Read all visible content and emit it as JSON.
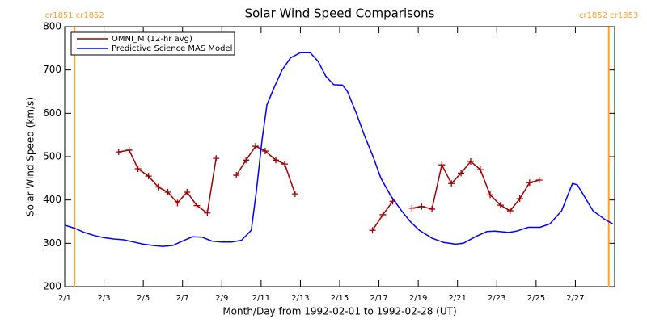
{
  "chart_data": {
    "type": "line",
    "title": "Solar Wind Speed Comparisons",
    "xlabel": "Month/Day from 1992-02-01 to 1992-02-28 (UT)",
    "ylabel": "Solar Wind Speed (km/s)",
    "xlim": [
      0,
      28
    ],
    "xticks": [
      {
        "value": 0,
        "label": "2/1"
      },
      {
        "value": 2,
        "label": "2/3"
      },
      {
        "value": 4,
        "label": "2/5"
      },
      {
        "value": 6,
        "label": "2/7"
      },
      {
        "value": 8,
        "label": "2/9"
      },
      {
        "value": 10,
        "label": "2/11"
      },
      {
        "value": 12,
        "label": "2/13"
      },
      {
        "value": 14,
        "label": "2/15"
      },
      {
        "value": 16,
        "label": "2/17"
      },
      {
        "value": 18,
        "label": "2/19"
      },
      {
        "value": 20,
        "label": "2/21"
      },
      {
        "value": 22,
        "label": "2/23"
      },
      {
        "value": 24,
        "label": "2/25"
      },
      {
        "value": 26,
        "label": "2/27"
      }
    ],
    "ylim": [
      200,
      800
    ],
    "yticks": [
      200,
      300,
      400,
      500,
      600,
      700,
      800
    ],
    "legend": "top-left",
    "annotations": [
      {
        "x": 0.5,
        "text": "cr1851 cr1852",
        "color": "#ff9f2f"
      },
      {
        "x": 27.7,
        "text": "cr1852 cr1853",
        "color": "#ff9f2f"
      }
    ],
    "series": [
      {
        "name": "OMNI_M (12-hr avg)",
        "color": "#a00000",
        "marker": "+",
        "x": [
          2.75,
          3.28,
          3.73,
          4.27,
          4.76,
          5.25,
          5.74,
          6.23,
          6.73,
          7.26,
          7.71,
          null,
          8.74,
          9.23,
          9.72,
          10.21,
          10.75,
          11.2,
          11.73,
          null,
          15.67,
          16.2,
          16.7,
          null,
          17.68,
          18.17,
          18.7,
          19.2,
          19.69,
          20.18,
          20.67,
          21.16,
          21.66,
          22.19,
          22.68,
          23.17,
          23.67,
          24.16
        ],
        "values": [
          511,
          515,
          472,
          455,
          430,
          418,
          393,
          418,
          387,
          370,
          496,
          null,
          457,
          492,
          524,
          513,
          492,
          483,
          414,
          null,
          330,
          366,
          397,
          null,
          381,
          385,
          379,
          481,
          438,
          462,
          489,
          470,
          412,
          388,
          375,
          403,
          440,
          446
        ]
      },
      {
        "name": "Predictive Science MAS Model",
        "color": "#0000ff",
        "x": [
          0,
          0.5,
          1,
          1.5,
          2,
          2.5,
          3,
          3.5,
          4,
          4.5,
          5,
          5.5,
          6,
          6.5,
          7,
          7.5,
          8,
          8.5,
          9,
          9.5,
          9.76,
          10.05,
          10.3,
          10.67,
          11.07,
          11.5,
          12,
          12.5,
          12.9,
          13.3,
          13.7,
          14.15,
          14.4,
          14.85,
          15.25,
          15.7,
          16.1,
          16.6,
          17.15,
          17.6,
          18.05,
          18.7,
          19.3,
          19.9,
          20.3,
          20.9,
          21.5,
          21.9,
          22.6,
          23,
          23.6,
          24.2,
          24.7,
          25.3,
          25.85,
          26.1,
          26.5,
          26.9,
          27.5,
          27.9
        ],
        "values": [
          342,
          335,
          325,
          318,
          313,
          310,
          308,
          303,
          298,
          295,
          293,
          295,
          305,
          315,
          314,
          305,
          303,
          303,
          307,
          330,
          420,
          540,
          620,
          660,
          700,
          728,
          740,
          740,
          720,
          685,
          666,
          665,
          650,
          600,
          550,
          500,
          450,
          410,
          375,
          350,
          330,
          312,
          302,
          298,
          300,
          315,
          327,
          328,
          325,
          328,
          337,
          337,
          345,
          375,
          438,
          435,
          405,
          375,
          355,
          345
        ]
      }
    ]
  }
}
